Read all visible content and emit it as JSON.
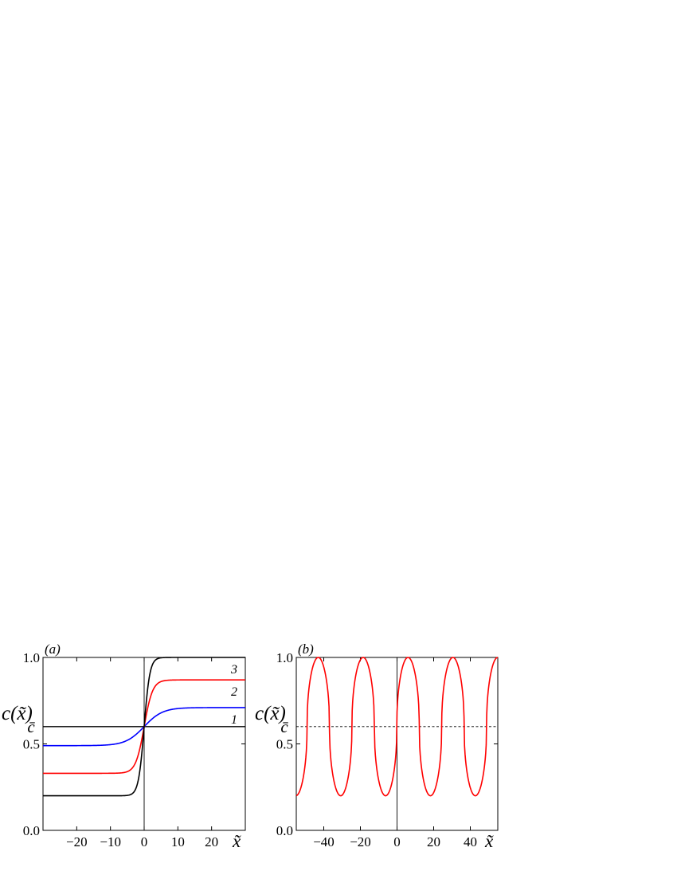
{
  "chart_data": [
    {
      "type": "line",
      "panel_label": "(a)",
      "ylabel": "c(x̃)",
      "xlabel": "x̃",
      "xlim": [
        -30,
        30
      ],
      "ylim": [
        0,
        1
      ],
      "x_ticks": [
        -20,
        -10,
        0,
        10,
        20
      ],
      "x_tick_labels": [
        "−20",
        "−10",
        "0",
        "10",
        "20"
      ],
      "y_ticks": [
        0,
        0.5,
        1
      ],
      "y_tick_labels": [
        "0.0",
        "0.5",
        "1.0"
      ],
      "cbar": {
        "label": "c̄",
        "value": 0.6
      },
      "reference_lines": {
        "x_zero": true,
        "y_cbar": "solid"
      },
      "grid": false,
      "series": [
        {
          "name": "1",
          "color": "#0000ff",
          "left": 0.49,
          "right": 0.71,
          "width": 5.5
        },
        {
          "name": "2",
          "color": "#ff0000",
          "left": 0.33,
          "right": 0.87,
          "width": 2.5
        },
        {
          "name": "3",
          "color": "#000000",
          "left": 0.2,
          "right": 1.0,
          "width": 1.7
        }
      ]
    },
    {
      "type": "line",
      "panel_label": "(b)",
      "ylabel": "c(x̃)",
      "xlabel": "x̃",
      "xlim": [
        -55,
        55
      ],
      "ylim": [
        0,
        1
      ],
      "x_ticks": [
        -40,
        -20,
        0,
        20,
        40
      ],
      "x_tick_labels": [
        "−40",
        "−20",
        "0",
        "20",
        "40"
      ],
      "y_ticks": [
        0,
        0.5,
        1
      ],
      "y_tick_labels": [
        "0.0",
        "0.5",
        "1.0"
      ],
      "cbar": {
        "label": "c̄",
        "value": 0.6
      },
      "reference_lines": {
        "x_zero": true,
        "y_cbar": "dashed"
      },
      "grid": false,
      "series": [
        {
          "color": "#ff0000",
          "min": 0.2,
          "max": 1.0,
          "period": 24.5,
          "phase_x_at_max": 6,
          "sharpness": 0.45
        }
      ]
    }
  ]
}
